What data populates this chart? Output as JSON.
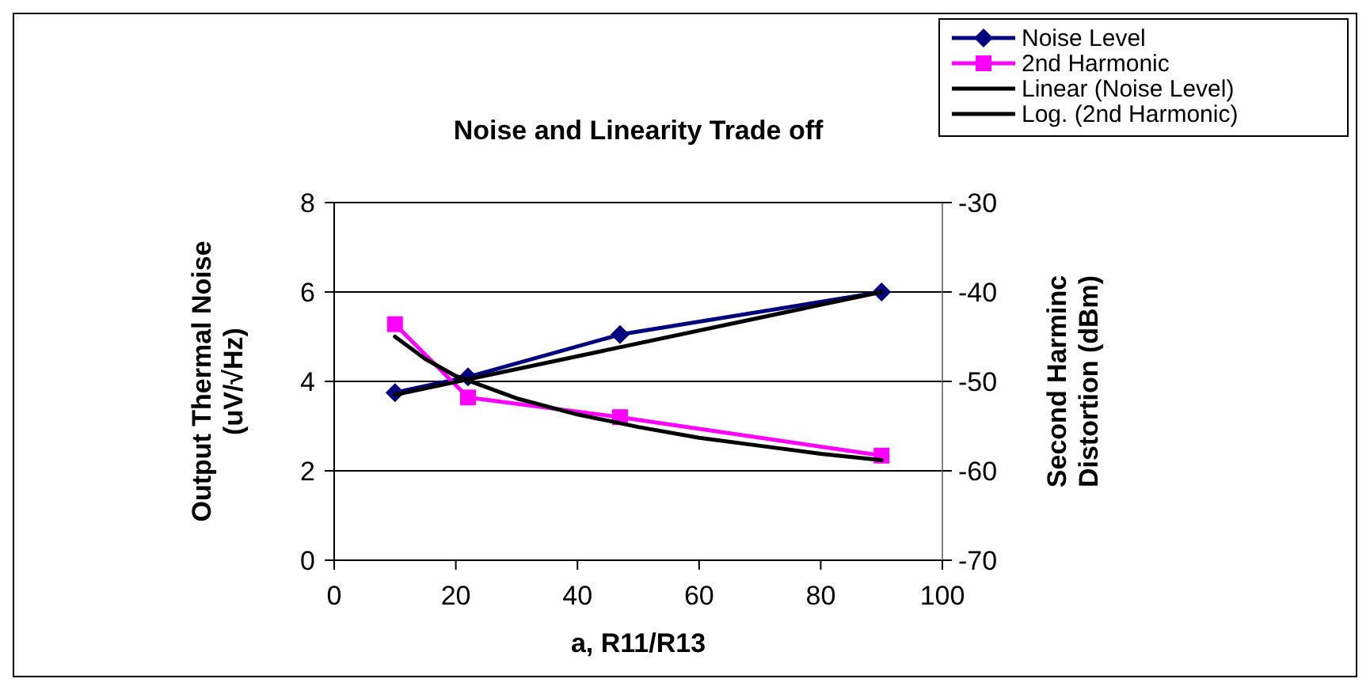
{
  "chart_data": {
    "type": "line",
    "title": "Noise and Linearity Trade off",
    "xlabel": "a, R11/R13",
    "ylabel": "Output Thermal Noise (uV/√Hz)",
    "y2label": "Second Harminc Distortion (dBm)",
    "xlim": [
      0,
      100
    ],
    "xticks": [
      0,
      20,
      40,
      60,
      80,
      100
    ],
    "ylim": [
      0,
      8
    ],
    "yticks": [
      0,
      2,
      4,
      6,
      8
    ],
    "y2lim": [
      -70,
      -30
    ],
    "y2ticks": [
      -70,
      -60,
      -50,
      -40,
      -30
    ],
    "grid": "y",
    "legend": "top right",
    "series": [
      {
        "name": "Noise Level",
        "color": "#000080",
        "marker": "diamond",
        "x": [
          10,
          22,
          47,
          90
        ],
        "values": [
          3.75,
          4.1,
          5.05,
          6.0
        ]
      },
      {
        "name": "2nd Harmonic",
        "color": "#ff00ff",
        "marker": "square",
        "axis": "y2",
        "x": [
          10,
          22,
          47,
          90
        ],
        "values": [
          -43.6,
          -51.8,
          -54.0,
          -58.3
        ]
      },
      {
        "name": "Linear (Noise Level)",
        "color": "#000000",
        "marker": "none",
        "x": [
          10,
          90
        ],
        "values": [
          3.7,
          6.0
        ]
      },
      {
        "name": "Log. (2nd Harmonic)",
        "color": "#000000",
        "marker": "none",
        "axis": "y2",
        "x": [
          10,
          15,
          20,
          30,
          40,
          50,
          60,
          70,
          80,
          90
        ],
        "values": [
          -45.0,
          -47.5,
          -49.4,
          -51.9,
          -53.7,
          -55.1,
          -56.3,
          -57.2,
          -58.1,
          -58.8
        ]
      }
    ]
  }
}
